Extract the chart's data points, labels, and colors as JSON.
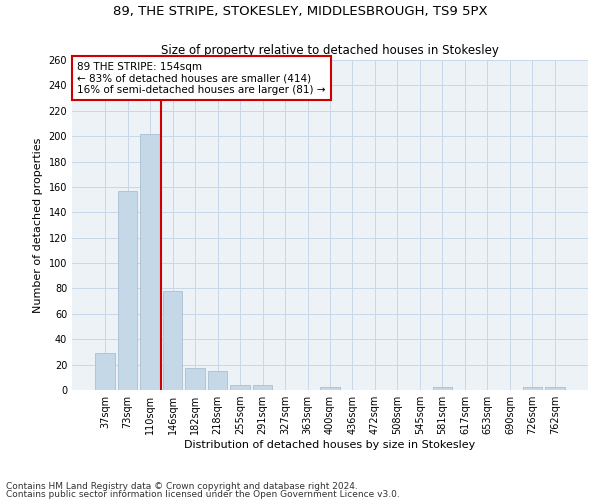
{
  "title": "89, THE STRIPE, STOKESLEY, MIDDLESBROUGH, TS9 5PX",
  "subtitle": "Size of property relative to detached houses in Stokesley",
  "xlabel": "Distribution of detached houses by size in Stokesley",
  "ylabel": "Number of detached properties",
  "bar_color": "#c5d8e8",
  "bar_edge_color": "#a0b8cc",
  "categories": [
    "37sqm",
    "73sqm",
    "110sqm",
    "146sqm",
    "182sqm",
    "218sqm",
    "255sqm",
    "291sqm",
    "327sqm",
    "363sqm",
    "400sqm",
    "436sqm",
    "472sqm",
    "508sqm",
    "545sqm",
    "581sqm",
    "617sqm",
    "653sqm",
    "690sqm",
    "726sqm",
    "762sqm"
  ],
  "values": [
    29,
    157,
    202,
    78,
    17,
    15,
    4,
    4,
    0,
    0,
    2,
    0,
    0,
    0,
    0,
    2,
    0,
    0,
    0,
    2,
    2
  ],
  "ylim": [
    0,
    260
  ],
  "yticks": [
    0,
    20,
    40,
    60,
    80,
    100,
    120,
    140,
    160,
    180,
    200,
    220,
    240,
    260
  ],
  "vline_pos": 2.5,
  "vline_color": "#cc0000",
  "annotation_box_text": "89 THE STRIPE: 154sqm\n← 83% of detached houses are smaller (414)\n16% of semi-detached houses are larger (81) →",
  "background_color": "#edf2f7",
  "grid_color": "#c8d8e8",
  "footer_line1": "Contains HM Land Registry data © Crown copyright and database right 2024.",
  "footer_line2": "Contains public sector information licensed under the Open Government Licence v3.0.",
  "title_fontsize": 9.5,
  "subtitle_fontsize": 8.5,
  "xlabel_fontsize": 8,
  "ylabel_fontsize": 8,
  "tick_fontsize": 7,
  "annotation_fontsize": 7.5,
  "footer_fontsize": 6.5
}
